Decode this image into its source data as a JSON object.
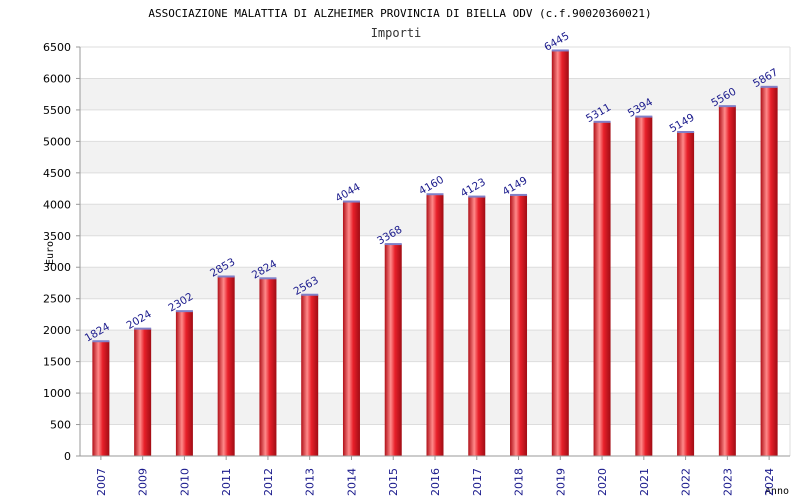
{
  "chart_data": {
    "type": "bar",
    "title": "ASSOCIAZIONE MALATTIA DI ALZHEIMER PROVINCIA DI BIELLA ODV (c.f.90020360021)",
    "subtitle": "Importi",
    "xlabel": "Anno",
    "ylabel": "Euro",
    "ylim": [
      0,
      6500
    ],
    "ytick_step": 500,
    "grid": true,
    "categories": [
      "2007",
      "2009",
      "2010",
      "2011",
      "2012",
      "2013",
      "2014",
      "2015",
      "2016",
      "2017",
      "2018",
      "2019",
      "2020",
      "2021",
      "2022",
      "2023",
      "2024"
    ],
    "values": [
      1824,
      2024,
      2302,
      2853,
      2824,
      2563,
      4044,
      3368,
      4160,
      4123,
      4149,
      6445,
      5311,
      5394,
      5149,
      5560,
      5867
    ],
    "colors": {
      "bar": "#e8202a",
      "bar_highlight": "#ff9a9a",
      "bar_top": "#8080c8",
      "label": "#1a1a8c",
      "band": "#f2f2f2",
      "grid": "#dddddd",
      "text": "#000000"
    }
  }
}
